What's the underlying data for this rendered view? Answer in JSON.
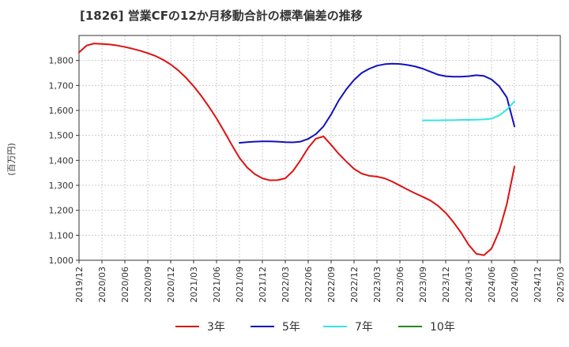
{
  "chart_data": {
    "type": "line",
    "title": "[1826]  営業CFの12か月移動合計の標準偏差の推移",
    "ylabel": "(百万円)",
    "ylim": [
      1000,
      1900
    ],
    "yticks": [
      1000,
      1100,
      1200,
      1300,
      1400,
      1500,
      1600,
      1700,
      1800
    ],
    "ytick_labels": [
      "1,000",
      "1,100",
      "1,200",
      "1,300",
      "1,400",
      "1,500",
      "1,600",
      "1,700",
      "1,800"
    ],
    "xticks": [
      "2019/12",
      "2020/03",
      "2020/06",
      "2020/09",
      "2020/12",
      "2021/03",
      "2021/06",
      "2021/09",
      "2021/12",
      "2022/03",
      "2022/06",
      "2022/09",
      "2022/12",
      "2023/03",
      "2023/06",
      "2023/09",
      "2023/12",
      "2024/03",
      "2024/06",
      "2024/09",
      "2024/12",
      "2025/03"
    ],
    "grid": true,
    "legend_position": "bottom",
    "series": [
      {
        "name": "3年",
        "color": "#dd1111",
        "x": [
          "2019/12",
          "2020/01",
          "2020/02",
          "2020/03",
          "2020/04",
          "2020/05",
          "2020/06",
          "2020/07",
          "2020/08",
          "2020/09",
          "2020/10",
          "2020/11",
          "2020/12",
          "2021/01",
          "2021/02",
          "2021/03",
          "2021/04",
          "2021/05",
          "2021/06",
          "2021/07",
          "2021/08",
          "2021/09",
          "2021/10",
          "2021/11",
          "2021/12",
          "2022/01",
          "2022/02",
          "2022/03",
          "2022/04",
          "2022/05",
          "2022/06",
          "2022/07",
          "2022/08",
          "2022/09",
          "2022/10",
          "2022/11",
          "2022/12",
          "2023/01",
          "2023/02",
          "2023/03",
          "2023/04",
          "2023/05",
          "2023/06",
          "2023/07",
          "2023/08",
          "2023/09",
          "2023/10",
          "2023/11",
          "2023/12",
          "2024/01",
          "2024/02",
          "2024/03",
          "2024/04",
          "2024/05",
          "2024/06",
          "2024/07",
          "2024/08",
          "2024/09"
        ],
        "values": [
          1832,
          1860,
          1868,
          1866,
          1864,
          1860,
          1854,
          1847,
          1839,
          1829,
          1818,
          1803,
          1784,
          1760,
          1731,
          1697,
          1658,
          1615,
          1568,
          1516,
          1462,
          1410,
          1372,
          1345,
          1328,
          1320,
          1321,
          1328,
          1357,
          1401,
          1450,
          1487,
          1496,
          1462,
          1426,
          1395,
          1366,
          1347,
          1338,
          1335,
          1328,
          1315,
          1299,
          1283,
          1268,
          1254,
          1239,
          1218,
          1190,
          1153,
          1111,
          1062,
          1026,
          1020,
          1047,
          1117,
          1225,
          1375
        ]
      },
      {
        "name": "5年",
        "color": "#1111bb",
        "x": [
          "2021/09",
          "2021/10",
          "2021/11",
          "2021/12",
          "2022/01",
          "2022/02",
          "2022/03",
          "2022/04",
          "2022/05",
          "2022/06",
          "2022/07",
          "2022/08",
          "2022/09",
          "2022/10",
          "2022/11",
          "2022/12",
          "2023/01",
          "2023/02",
          "2023/03",
          "2023/04",
          "2023/05",
          "2023/06",
          "2023/07",
          "2023/08",
          "2023/09",
          "2023/10",
          "2023/11",
          "2023/12",
          "2024/01",
          "2024/02",
          "2024/03",
          "2024/04",
          "2024/05",
          "2024/06",
          "2024/07",
          "2024/08",
          "2024/09"
        ],
        "values": [
          1470,
          1473,
          1475,
          1476,
          1476,
          1475,
          1473,
          1472,
          1475,
          1486,
          1505,
          1536,
          1584,
          1640,
          1685,
          1722,
          1750,
          1767,
          1779,
          1785,
          1787,
          1786,
          1782,
          1776,
          1767,
          1755,
          1743,
          1737,
          1735,
          1735,
          1737,
          1741,
          1738,
          1724,
          1697,
          1652,
          1536
        ]
      },
      {
        "name": "7年",
        "color": "#33e5e5",
        "x": [
          "2023/09",
          "2023/10",
          "2023/11",
          "2023/12",
          "2024/01",
          "2024/02",
          "2024/03",
          "2024/04",
          "2024/05",
          "2024/06",
          "2024/07",
          "2024/08",
          "2024/09"
        ],
        "values": [
          1560,
          1560,
          1560,
          1561,
          1561,
          1562,
          1562,
          1563,
          1564,
          1567,
          1580,
          1603,
          1636
        ]
      },
      {
        "name": "10年",
        "color": "#228822",
        "x": [],
        "values": []
      }
    ]
  }
}
